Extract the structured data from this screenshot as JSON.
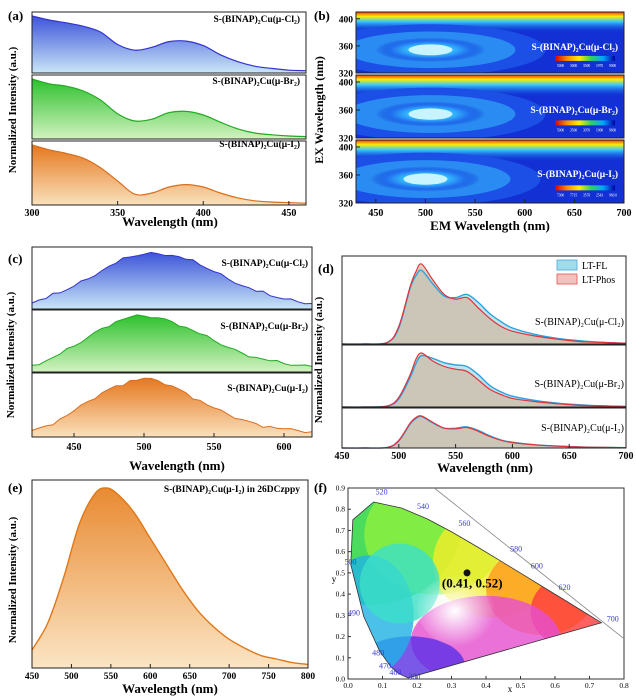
{
  "panels": {
    "a": {
      "label": "(a)",
      "xlabel": "Wavelength (nm)",
      "ylabel": "Normalized Intensity (a.u.)",
      "xticks": [
        "300",
        "350",
        "400",
        "450"
      ],
      "xlim": [
        300,
        460
      ],
      "traces": [
        {
          "legend": "S-(BINAP)₂Cu(μ-Cl₂)",
          "color": "#3a3ad6",
          "fill": "#a9ccef"
        },
        {
          "legend": "S-(BINAP)₂Cu(μ-Br₂)",
          "color": "#22bb22",
          "fill": "#9bde7c"
        },
        {
          "legend": "S-(BINAP)₂Cu(μ-I₂)",
          "color": "#d8782a",
          "fill": "#f2b068"
        }
      ]
    },
    "b": {
      "label": "(b)",
      "xlabel": "EM Wavelength (nm)",
      "ylabel": "EX Wavelength (nm)",
      "xticks": [
        "450",
        "500",
        "550",
        "600",
        "650",
        "700"
      ],
      "yticks": [
        "320",
        "360",
        "400"
      ],
      "maps": [
        {
          "legend": "S-(BINAP)₂Cu(μ-Cl₂)",
          "scale": [
            "5000",
            "3000",
            "3500",
            "1970",
            "9000"
          ]
        },
        {
          "legend": "S-(BINAP)₂Cu(μ-Br₂)",
          "scale": [
            "5000",
            "3500",
            "3970",
            "1900",
            "9600"
          ]
        },
        {
          "legend": "S-(BINAP)₂Cu(μ-I₂)",
          "scale": [
            "7300",
            "7715",
            "3570",
            "2543",
            "960.0"
          ]
        }
      ]
    },
    "c": {
      "label": "(c)",
      "xlabel": "Wavelength (nm)",
      "ylabel": "Normalized Intensity (a.u.)",
      "xticks": [
        "450",
        "500",
        "550",
        "600"
      ],
      "xlim": [
        420,
        620
      ],
      "traces": [
        {
          "legend": "S-(BINAP)₂Cu(μ-Cl₂)",
          "color": "#2222cc",
          "fill": "#8fb2ee"
        },
        {
          "legend": "S-(BINAP)₂Cu(μ-Br₂)",
          "color": "#22bb22",
          "fill": "#96de78"
        },
        {
          "legend": "S-(BINAP)₂Cu(μ-I₂)",
          "color": "#e0701a",
          "fill": "#f2b068"
        }
      ]
    },
    "d": {
      "label": "(d)",
      "xlabel": "Wavelength (nm)",
      "ylabel": "Normalized Intensity (a.u.)",
      "xticks": [
        "450",
        "500",
        "550",
        "600",
        "650",
        "700"
      ],
      "xlim": [
        450,
        700
      ],
      "legend_items": [
        "LT-FL",
        "LT-Phos"
      ],
      "traces": [
        {
          "legend": "S-(BINAP)₂Cu(μ-Cl₂)"
        },
        {
          "legend": "S-(BINAP)₂Cu(μ-Br₂)"
        },
        {
          "legend": "S-(BINAP)₂Cu(μ-I₂)"
        }
      ]
    },
    "e": {
      "label": "(e)",
      "xlabel": "Wavelength (nm)",
      "ylabel": "Normalized Intensity (a.u.)",
      "xticks": [
        "450",
        "500",
        "550",
        "600",
        "650",
        "700",
        "750",
        "800"
      ],
      "xlim": [
        450,
        800
      ],
      "legend": "S-(BINAP)₂Cu(μ-I₂) in 26DCzppy"
    },
    "f": {
      "label": "(f)",
      "xlabel": "x",
      "ylabel": "y",
      "xticks": [
        "0.0",
        "0.1",
        "0.2",
        "0.3",
        "0.4",
        "0.5",
        "0.6",
        "0.7",
        "0.8"
      ],
      "yticks": [
        "0.0",
        "0.1",
        "0.2",
        "0.3",
        "0.4",
        "0.5",
        "0.6",
        "0.7",
        "0.8",
        "0.9"
      ],
      "locus_labels": [
        "380",
        "460",
        "470",
        "480",
        "490",
        "500",
        "520",
        "540",
        "560",
        "580",
        "600",
        "620",
        "700"
      ],
      "point_label": "(0.41, 0.52)"
    }
  },
  "chart_data": [
    {
      "type": "area",
      "panel": "a",
      "xlabel": "Wavelength (nm)",
      "ylabel": "Normalized Intensity (a.u.)",
      "x": [
        300,
        310,
        320,
        330,
        340,
        350,
        360,
        370,
        380,
        390,
        400,
        410,
        420,
        430,
        440,
        450,
        460
      ],
      "series": [
        {
          "name": "S-(BINAP)2Cu(μ-Cl2)",
          "values": [
            1.0,
            0.93,
            0.88,
            0.82,
            0.72,
            0.5,
            0.4,
            0.45,
            0.55,
            0.56,
            0.48,
            0.32,
            0.2,
            0.12,
            0.08,
            0.05,
            0.04
          ]
        },
        {
          "name": "S-(BINAP)2Cu(μ-Br2)",
          "values": [
            1.0,
            0.92,
            0.88,
            0.8,
            0.65,
            0.42,
            0.3,
            0.33,
            0.44,
            0.46,
            0.4,
            0.28,
            0.17,
            0.1,
            0.07,
            0.05,
            0.04
          ]
        },
        {
          "name": "S-(BINAP)2Cu(μ-I2)",
          "values": [
            1.0,
            0.92,
            0.86,
            0.78,
            0.62,
            0.4,
            0.18,
            0.2,
            0.3,
            0.34,
            0.3,
            0.2,
            0.12,
            0.07,
            0.05,
            0.04,
            0.03
          ]
        }
      ]
    },
    {
      "type": "heatmap",
      "panel": "b",
      "xlabel": "EM Wavelength (nm)",
      "ylabel": "EX Wavelength (nm)",
      "xlim": [
        430,
        700
      ],
      "ylim": [
        320,
        410
      ],
      "maps": [
        {
          "name": "S-(BINAP)2Cu(μ-Cl2)",
          "peak_em": 505,
          "peak_ex": 360
        },
        {
          "name": "S-(BINAP)2Cu(μ-Br2)",
          "peak_em": 505,
          "peak_ex": 360
        },
        {
          "name": "S-(BINAP)2Cu(μ-I2)",
          "peak_em": 500,
          "peak_ex": 355
        }
      ]
    },
    {
      "type": "area",
      "panel": "c",
      "xlabel": "Wavelength (nm)",
      "ylabel": "Normalized Intensity (a.u.)",
      "x": [
        420,
        430,
        440,
        450,
        460,
        470,
        480,
        490,
        500,
        510,
        520,
        530,
        540,
        550,
        560,
        570,
        580,
        590,
        600,
        610,
        620
      ],
      "series": [
        {
          "name": "S-(BINAP)2Cu(μ-Cl2)",
          "values": [
            0.12,
            0.2,
            0.3,
            0.42,
            0.55,
            0.7,
            0.83,
            0.94,
            0.99,
            1.0,
            0.97,
            0.9,
            0.8,
            0.68,
            0.55,
            0.43,
            0.33,
            0.25,
            0.19,
            0.14,
            0.11
          ]
        },
        {
          "name": "S-(BINAP)2Cu(μ-Br2)",
          "values": [
            0.12,
            0.2,
            0.32,
            0.46,
            0.62,
            0.78,
            0.9,
            0.98,
            1.0,
            0.97,
            0.9,
            0.8,
            0.68,
            0.56,
            0.44,
            0.34,
            0.26,
            0.2,
            0.15,
            0.12,
            0.1
          ]
        },
        {
          "name": "S-(BINAP)2Cu(μ-I2)",
          "values": [
            0.1,
            0.18,
            0.3,
            0.44,
            0.6,
            0.75,
            0.87,
            0.96,
            1.0,
            0.96,
            0.87,
            0.75,
            0.62,
            0.49,
            0.38,
            0.29,
            0.22,
            0.17,
            0.13,
            0.1,
            0.08
          ]
        }
      ]
    },
    {
      "type": "line",
      "panel": "d",
      "xlabel": "Wavelength (nm)",
      "ylabel": "Normalized Intensity (a.u.)",
      "x": [
        450,
        470,
        490,
        500,
        510,
        515,
        520,
        530,
        540,
        550,
        560,
        570,
        580,
        590,
        600,
        620,
        640,
        660,
        680,
        700
      ],
      "series": [
        {
          "name": "S-(BINAP)2Cu(μ-Cl2) LT-FL",
          "values": [
            0.0,
            0.0,
            0.02,
            0.2,
            0.7,
            0.85,
            0.92,
            0.75,
            0.6,
            0.58,
            0.62,
            0.52,
            0.38,
            0.28,
            0.2,
            0.12,
            0.07,
            0.04,
            0.02,
            0.01
          ]
        },
        {
          "name": "S-(BINAP)2Cu(μ-Cl2) LT-Phos",
          "values": [
            0.0,
            0.0,
            0.02,
            0.22,
            0.72,
            0.9,
            1.0,
            0.8,
            0.62,
            0.56,
            0.58,
            0.45,
            0.32,
            0.22,
            0.16,
            0.1,
            0.06,
            0.03,
            0.02,
            0.01
          ]
        },
        {
          "name": "S-(BINAP)2Cu(μ-Br2) LT-FL",
          "values": [
            0.0,
            0.0,
            0.02,
            0.15,
            0.55,
            0.8,
            0.95,
            0.9,
            0.82,
            0.78,
            0.75,
            0.6,
            0.4,
            0.28,
            0.2,
            0.12,
            0.07,
            0.04,
            0.02,
            0.01
          ]
        },
        {
          "name": "S-(BINAP)2Cu(μ-Br2) LT-Phos",
          "values": [
            0.0,
            0.0,
            0.02,
            0.18,
            0.6,
            0.88,
            1.0,
            0.85,
            0.75,
            0.7,
            0.66,
            0.5,
            0.33,
            0.23,
            0.16,
            0.1,
            0.06,
            0.03,
            0.02,
            0.01
          ]
        },
        {
          "name": "S-(BINAP)2Cu(μ-I2) LT-FL",
          "values": [
            0.0,
            0.0,
            0.02,
            0.22,
            0.75,
            0.92,
            0.98,
            0.78,
            0.62,
            0.62,
            0.66,
            0.55,
            0.38,
            0.25,
            0.18,
            0.1,
            0.06,
            0.03,
            0.02,
            0.01
          ]
        },
        {
          "name": "S-(BINAP)2Cu(μ-I2) LT-Phos",
          "values": [
            0.0,
            0.0,
            0.02,
            0.24,
            0.78,
            0.95,
            1.0,
            0.8,
            0.62,
            0.6,
            0.64,
            0.52,
            0.36,
            0.24,
            0.17,
            0.1,
            0.06,
            0.03,
            0.02,
            0.01
          ]
        }
      ]
    },
    {
      "type": "area",
      "panel": "e",
      "xlabel": "Wavelength (nm)",
      "ylabel": "Normalized Intensity (a.u.)",
      "x": [
        450,
        470,
        490,
        510,
        530,
        545,
        560,
        580,
        600,
        620,
        640,
        660,
        680,
        700,
        720,
        740,
        760,
        780,
        800
      ],
      "series": [
        {
          "name": "S-(BINAP)2Cu(μ-I2) in 26DCzppy",
          "values": [
            0.1,
            0.25,
            0.5,
            0.8,
            0.97,
            1.0,
            0.96,
            0.86,
            0.72,
            0.58,
            0.44,
            0.32,
            0.23,
            0.16,
            0.11,
            0.07,
            0.05,
            0.03,
            0.02
          ]
        }
      ]
    },
    {
      "type": "scatter",
      "panel": "f",
      "xlabel": "x",
      "ylabel": "y",
      "xlim": [
        0.0,
        0.8
      ],
      "ylim": [
        0.0,
        0.9
      ],
      "points": [
        {
          "x": 0.41,
          "y": 0.52,
          "label": "(0.41, 0.52)"
        }
      ]
    }
  ]
}
